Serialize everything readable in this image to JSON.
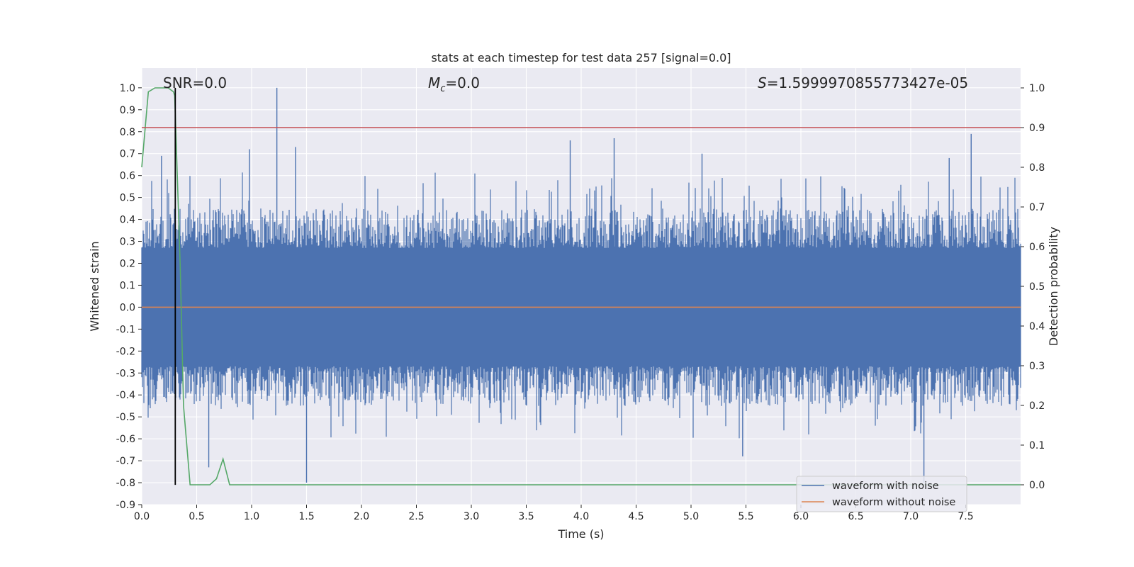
{
  "chart_data": {
    "type": "line",
    "title": "stats at each timestep for test data 257 [signal=0.0]",
    "xlabel": "Time (s)",
    "ylabel": "Whitened strain",
    "y2label": "Detection probability",
    "xlim": [
      0.0,
      8.0
    ],
    "ylim": [
      -0.9,
      1.09
    ],
    "y2lim": [
      -0.05,
      1.05
    ],
    "x_ticks": [
      "0.0",
      "0.5",
      "1.0",
      "1.5",
      "2.0",
      "2.5",
      "3.0",
      "3.5",
      "4.0",
      "4.5",
      "5.0",
      "5.5",
      "6.0",
      "6.5",
      "7.0",
      "7.5"
    ],
    "y_ticks": [
      "1.0",
      "0.9",
      "0.8",
      "0.7",
      "0.6",
      "0.5",
      "0.4",
      "0.3",
      "0.2",
      "0.1",
      "0.0",
      "-0.1",
      "-0.2",
      "-0.3",
      "-0.4",
      "-0.5",
      "-0.6",
      "-0.7",
      "-0.8",
      "-0.9"
    ],
    "y2_ticks": [
      "1.0",
      "0.9",
      "0.8",
      "0.7",
      "0.6",
      "0.5",
      "0.4",
      "0.3",
      "0.2",
      "0.1",
      "0.0"
    ],
    "grid": true,
    "legend_position": "lower-right",
    "annotations": {
      "snr": "SNR=0.0",
      "mc_symbol": "M",
      "mc_sub": "c",
      "mc_rest": "=0.0",
      "s_symbol": "S",
      "s_rest": "=1.5999970855773427e-05"
    },
    "series": [
      {
        "name": "waveform with noise",
        "color": "#4c72b0",
        "kind": "noise",
        "core_band": [
          -0.27,
          0.27
        ],
        "typical_extreme": [
          -0.45,
          0.45
        ],
        "notable_peaks": [
          {
            "x": 1.23,
            "y": 1.0
          },
          {
            "x": 0.18,
            "y": 0.69
          },
          {
            "x": 0.98,
            "y": 0.72
          },
          {
            "x": 1.4,
            "y": 0.73
          },
          {
            "x": 3.9,
            "y": 0.76
          },
          {
            "x": 4.3,
            "y": 0.77
          },
          {
            "x": 5.1,
            "y": 0.7
          },
          {
            "x": 7.35,
            "y": 0.68
          },
          {
            "x": 7.55,
            "y": 0.79
          },
          {
            "x": 1.5,
            "y": -0.8
          },
          {
            "x": 7.12,
            "y": -0.8
          },
          {
            "x": 5.47,
            "y": -0.68
          },
          {
            "x": 0.61,
            "y": -0.73
          }
        ]
      },
      {
        "name": "waveform without noise",
        "color": "#dd8452",
        "x": [
          0.0,
          8.0
        ],
        "y": [
          0.0,
          0.0
        ]
      },
      {
        "name": "detection probability",
        "axis": "right",
        "color": "#55a868",
        "x": [
          0.0,
          0.06,
          0.12,
          0.24,
          0.29,
          0.3,
          0.35,
          0.38,
          0.44,
          0.62,
          0.68,
          0.74,
          0.8,
          0.86,
          1.0,
          8.0
        ],
        "y": [
          0.8,
          0.99,
          1.0,
          1.0,
          0.99,
          0.98,
          0.55,
          0.2,
          0.0,
          0.0,
          0.015,
          0.065,
          0.0,
          0.0,
          0.0,
          0.0
        ]
      },
      {
        "name": "detection threshold",
        "axis": "right",
        "color": "#c44e52",
        "x": [
          0.0,
          8.0
        ],
        "y": [
          0.9,
          0.9
        ]
      },
      {
        "name": "peak marker",
        "color": "#000000",
        "x": [
          0.305,
          0.305
        ],
        "y": [
          -0.81,
          1.0
        ]
      }
    ]
  },
  "colors": {
    "axes_bg": "#eaeaf2",
    "grid": "#ffffff",
    "text": "#262626"
  }
}
